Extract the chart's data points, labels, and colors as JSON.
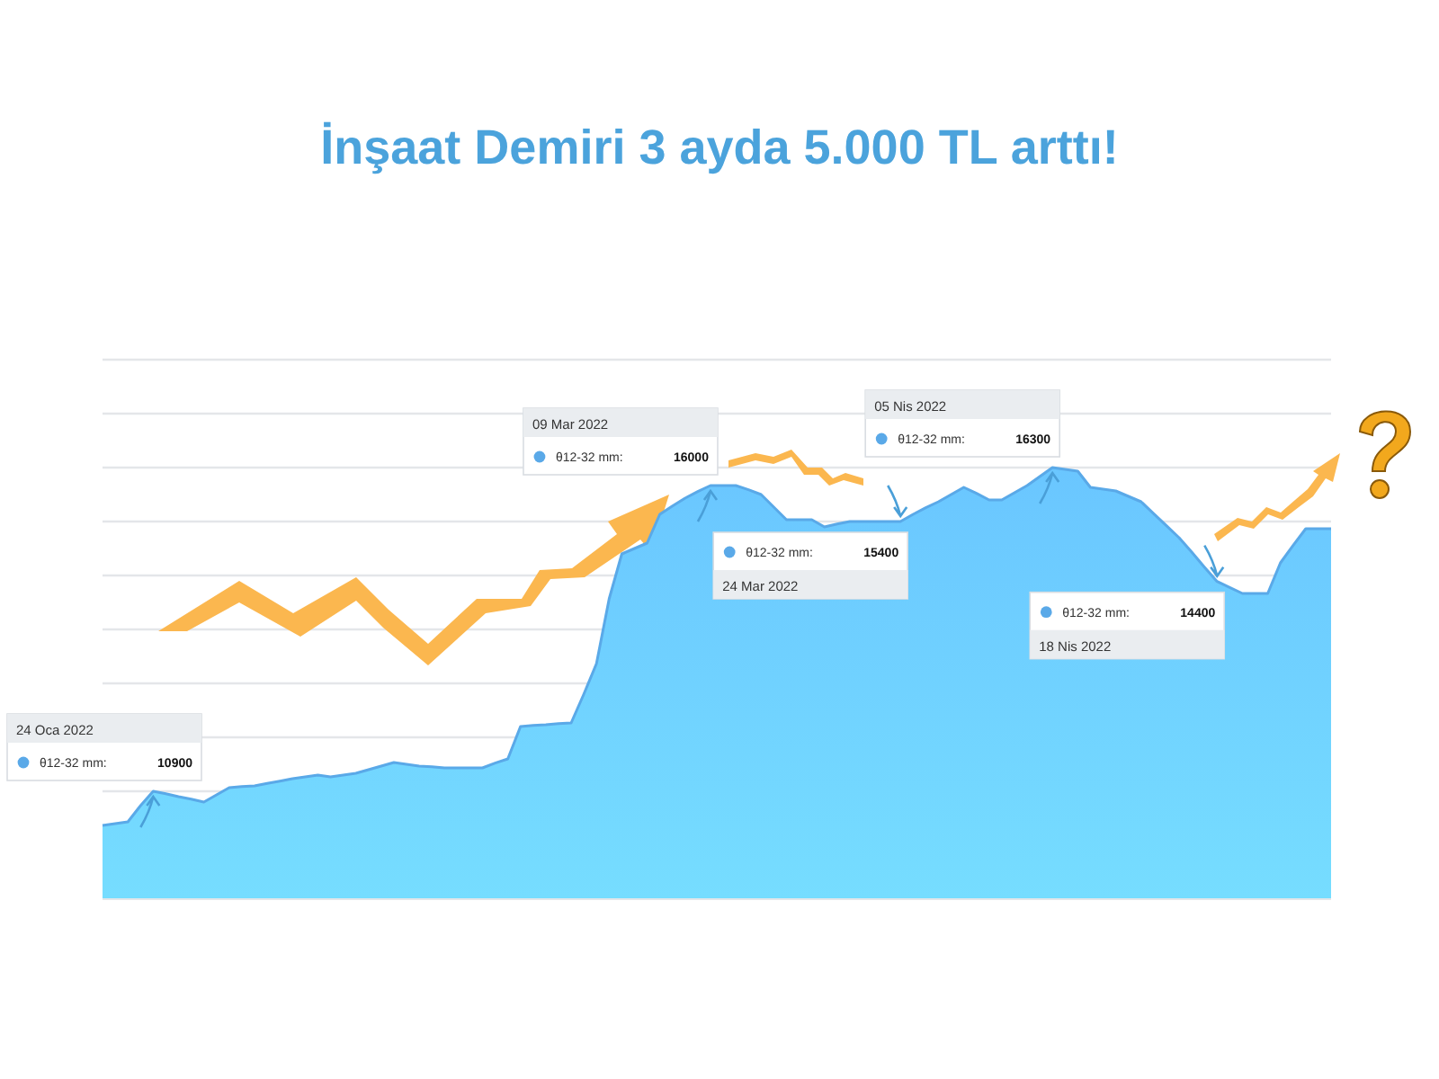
{
  "chart_data": {
    "type": "area",
    "title": "İnşaat Demiri 3 ayda 5.000 TL arttı!",
    "categories": [
      null,
      null,
      null,
      null,
      null,
      null,
      null,
      null,
      null,
      null,
      null,
      null,
      null,
      null,
      null,
      null,
      null,
      null,
      null,
      null,
      null,
      null,
      null,
      null,
      null,
      null,
      null,
      null,
      null,
      null,
      null,
      null,
      null,
      null,
      null,
      null,
      null,
      null,
      null,
      null,
      null,
      null,
      null,
      null,
      null,
      null,
      null,
      null,
      null,
      null,
      null,
      null,
      null,
      null,
      null,
      null,
      null,
      null,
      null,
      null,
      null,
      null,
      null,
      null,
      null,
      null,
      null,
      null,
      null,
      null,
      null,
      null,
      null,
      null,
      null,
      null,
      null,
      null,
      null,
      null,
      null,
      null,
      null,
      null,
      null,
      null,
      null,
      null,
      null,
      null,
      null,
      null,
      null,
      null,
      null,
      null,
      null,
      null
    ],
    "series": [
      {
        "name": "θ12-32 mm:",
        "color": "#5aa9e8",
        "values": [
          10330,
          10360,
          10390,
          10660,
          10900,
          10860,
          10810,
          10770,
          10720,
          10840,
          10960,
          10980,
          10990,
          11030,
          11070,
          11110,
          11140,
          11170,
          11140,
          11170,
          11200,
          11260,
          11320,
          11380,
          11350,
          11320,
          11310,
          11290,
          11290,
          11290,
          11290,
          11370,
          11440,
          11980,
          12000,
          12010,
          12030,
          12040,
          12520,
          13030,
          14110,
          14860,
          14950,
          15040,
          15520,
          15660,
          15790,
          15900,
          16000,
          16000,
          16000,
          15930,
          15850,
          15640,
          15430,
          15430,
          15430,
          15310,
          15360,
          15400,
          15400,
          15400,
          15400,
          15400,
          15520,
          15630,
          15730,
          15850,
          15970,
          15870,
          15760,
          15760,
          15880,
          16000,
          16150,
          16300,
          16270,
          16240,
          15970,
          15940,
          15910,
          15820,
          15730,
          15530,
          15330,
          15130,
          14890,
          14640,
          14400,
          14300,
          14200,
          14200,
          14200,
          14710,
          15000,
          15280,
          15280,
          15280
        ],
        "value_labels": [
          null,
          null,
          null,
          null,
          "10900",
          null,
          null,
          null,
          null,
          null,
          null,
          null,
          null,
          null,
          null,
          null,
          null,
          null,
          null,
          null,
          null,
          null,
          null,
          null,
          null,
          null,
          null,
          null,
          null,
          null,
          null,
          null,
          null,
          null,
          null,
          null,
          null,
          null,
          null,
          null,
          null,
          null,
          null,
          null,
          null,
          null,
          null,
          null,
          "16000",
          null,
          null,
          null,
          null,
          null,
          null,
          null,
          null,
          null,
          null,
          null,
          null,
          null,
          null,
          "15400",
          null,
          null,
          null,
          null,
          null,
          null,
          null,
          null,
          null,
          null,
          null,
          "16300",
          null,
          null,
          null,
          null,
          null,
          null,
          null,
          null,
          null,
          null,
          null,
          null,
          "14400",
          null,
          null,
          null,
          null,
          null,
          null,
          null,
          null,
          null
        ]
      }
    ],
    "ylim": [
      9100,
      18100
    ],
    "yticks": [
      {
        "value": 10900,
        "label": null
      },
      {
        "value": 11800,
        "label": null
      },
      {
        "value": 12700,
        "label": null
      },
      {
        "value": 13600,
        "label": null
      },
      {
        "value": 14500,
        "label": null
      },
      {
        "value": 15400,
        "label": null
      },
      {
        "value": 16300,
        "label": null
      },
      {
        "value": 17200,
        "label": null
      },
      {
        "value": 18100,
        "label": null
      }
    ],
    "grid": "y",
    "annotations": [
      "24 Oca 2022",
      "09 Mar 2022",
      "24 Mar 2022",
      "05 Nis 2022",
      "18 Nis 2022"
    ]
  }
}
